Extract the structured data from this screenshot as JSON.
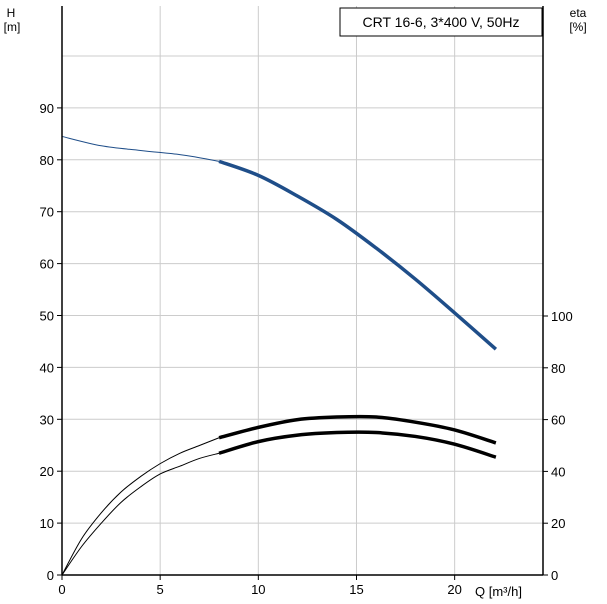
{
  "chart_data": {
    "type": "line",
    "title": "CRT 16-6, 3*400 V, 50Hz",
    "xlabel": "Q [m³/h]",
    "ylabel_left_line1": "H",
    "ylabel_left_line2": "[m]",
    "ylabel_right_line1": "eta",
    "ylabel_right_line2": "[%]",
    "xlim": [
      0,
      24.5
    ],
    "ylim_left": [
      0,
      100
    ],
    "ylim_right": [
      0,
      100
    ],
    "grid": true,
    "x_ticks": [
      {
        "value": 0,
        "label": "0"
      },
      {
        "value": 5,
        "label": "5"
      },
      {
        "value": 10,
        "label": "10"
      },
      {
        "value": 15,
        "label": "15"
      },
      {
        "value": 20,
        "label": "20"
      }
    ],
    "x_gridlines": [
      0,
      5,
      10,
      15,
      20
    ],
    "y_left_ticks": [
      {
        "value": 0,
        "label": "0"
      },
      {
        "value": 10,
        "label": "10"
      },
      {
        "value": 20,
        "label": "20"
      },
      {
        "value": 30,
        "label": "30"
      },
      {
        "value": 40,
        "label": "40"
      },
      {
        "value": 50,
        "label": "50"
      },
      {
        "value": 60,
        "label": "60"
      },
      {
        "value": 70,
        "label": "70"
      },
      {
        "value": 80,
        "label": "80"
      },
      {
        "value": 90,
        "label": "90"
      }
    ],
    "y_left_gridlines": [
      0,
      10,
      20,
      30,
      40,
      50,
      60,
      70,
      80,
      90,
      100
    ],
    "y_right_ticks": [
      {
        "value": 0,
        "label": "0"
      },
      {
        "value": 20,
        "label": "20"
      },
      {
        "value": 40,
        "label": "40"
      },
      {
        "value": 60,
        "label": "60"
      },
      {
        "value": 80,
        "label": "80"
      },
      {
        "value": 100,
        "label": "100"
      }
    ],
    "series": [
      {
        "axis": "left",
        "color": "#1f4e89",
        "segments": [
          {
            "weight": "thin",
            "x": [
              0,
              2,
              4,
              6,
              7,
              8
            ],
            "y": [
              84.5,
              82.7,
              81.8,
              81.0,
              80.4,
              79.7
            ]
          },
          {
            "weight": "thick",
            "x": [
              8,
              10,
              12,
              14,
              16,
              18,
              20,
              22.1
            ],
            "y": [
              79.7,
              77.0,
              73.0,
              68.5,
              63.0,
              57.0,
              50.5,
              43.5
            ]
          }
        ]
      },
      {
        "axis": "right",
        "color": "#000000",
        "segments": [
          {
            "weight": "thin",
            "x": [
              0,
              1,
              2,
              3,
              4,
              5,
              6,
              7,
              8
            ],
            "y": [
              0,
              14,
              24,
              32,
              38,
              43,
              47,
              50,
              53
            ]
          },
          {
            "weight": "thick",
            "x": [
              8,
              10,
              12,
              14,
              16,
              18,
              20,
              22.1
            ],
            "y": [
              53,
              57,
              60,
              61,
              61,
              59,
              56,
              51
            ]
          }
        ]
      },
      {
        "axis": "right",
        "color": "#000000",
        "segments": [
          {
            "weight": "thin",
            "x": [
              0,
              1,
              2,
              3,
              4,
              5,
              6,
              7,
              8
            ],
            "y": [
              0,
              11,
              20,
              28,
              34,
              39,
              42,
              45,
              47
            ]
          },
          {
            "weight": "thick",
            "x": [
              8,
              10,
              12,
              14,
              16,
              18,
              20,
              22.1
            ],
            "y": [
              47,
              51.5,
              54,
              55,
              55,
              53.5,
              50.5,
              45.5
            ]
          }
        ]
      }
    ]
  }
}
